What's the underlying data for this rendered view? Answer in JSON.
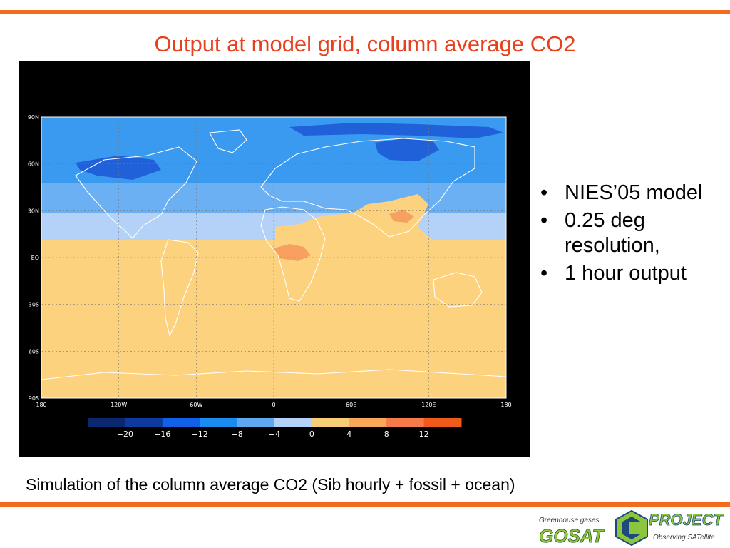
{
  "slide": {
    "title": "Output at model grid, column average CO2",
    "caption": "Simulation of the column average CO2 (Sib hourly + fossil + ocean)",
    "bullets": [
      "NIES’05 model",
      "0.25 deg resolution,",
      "1 hour output"
    ]
  },
  "map": {
    "lat_labels": [
      "90N",
      "60N",
      "30N",
      "EQ",
      "30S",
      "60S",
      "90S"
    ],
    "lon_labels": [
      "180",
      "120W",
      "60W",
      "0",
      "60E",
      "120E",
      "180"
    ],
    "colorbar_labels": [
      "−20",
      "−16",
      "−12",
      "−8",
      "−4",
      "0",
      "4",
      "8",
      "12"
    ],
    "colorbar_colors": [
      "#0a2770",
      "#0c3a9e",
      "#1060e8",
      "#1a8cf0",
      "#5ea8f0",
      "#b4d2f8",
      "#f8cd78",
      "#f8a858",
      "#f67a4a",
      "#f05a1a"
    ],
    "colors": {
      "band_strong_neg": "#2060d8",
      "band_neg": "#3a9af0",
      "band_mid_neg": "#6cb0f4",
      "band_light_neg": "#b4d2f8",
      "positive": "#fcd27e",
      "hotspot": "#f8a060"
    }
  },
  "logo": {
    "tagline_top": "Greenhouse gases",
    "brand": "GOSAT",
    "project": "PROJECT",
    "tagline_bottom": "Observing SATellite"
  },
  "accent_color": "#f36b1c"
}
